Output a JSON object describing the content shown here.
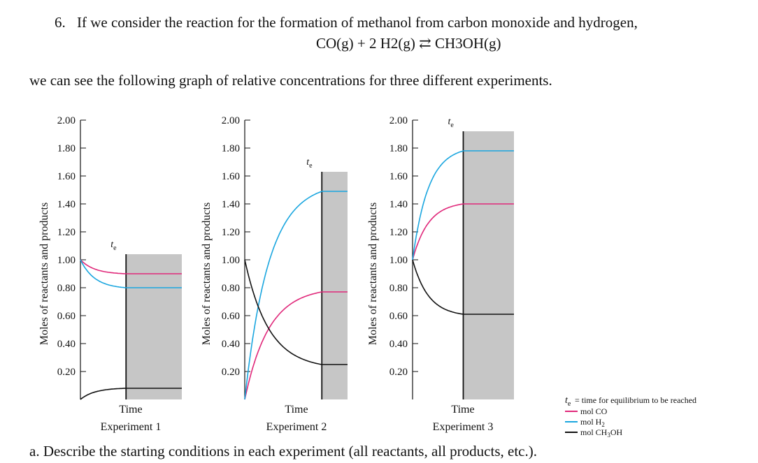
{
  "question": {
    "number": "6.",
    "text": "If we consider the reaction for the formation of methanol from carbon monoxide and hydrogen,",
    "equation": "CO(g) + 2 H2(g) ⇄ CH3OH(g)",
    "intro": "we can see the following graph of relative concentrations for three different experiments.",
    "part_a": "a. Describe the starting conditions in each experiment (all reactants, all products, etc.)."
  },
  "legend": {
    "te_symbol": "t",
    "te_sub": "e",
    "te_text": "= time for equilibrium to be reached",
    "co": "mol CO",
    "h2": "mol H",
    "h2_sub": "2",
    "ch3oh": "mol CH",
    "ch3oh_sub": "3",
    "ch3oh_end": "OH"
  },
  "colors": {
    "co": "#e0287a",
    "h2": "#1aa6df",
    "ch3oh": "#111111",
    "shade": "#c6c6c6"
  },
  "chart_data": [
    {
      "type": "line",
      "title": "Experiment 1",
      "xlabel": "Time",
      "ylabel": "Moles of reactants and products",
      "yticks": [
        "2.00",
        "1.80",
        "1.60",
        "1.40",
        "1.20",
        "1.00",
        "0.80",
        "0.60",
        "0.40",
        "0.20"
      ],
      "ylim": [
        0,
        2.0
      ],
      "te_label": "t",
      "te_fraction": 0.45,
      "series": [
        {
          "name": "mol CO",
          "start": 1.0,
          "equilibrium": 0.9
        },
        {
          "name": "mol H2",
          "start": 1.0,
          "equilibrium": 0.8
        },
        {
          "name": "mol CH3OH",
          "start": 0.0,
          "equilibrium": 0.08
        }
      ]
    },
    {
      "type": "line",
      "title": "Experiment 2",
      "xlabel": "Time",
      "ylabel": "Moles of reactants and products",
      "yticks": [
        "2.00",
        "1.80",
        "1.60",
        "1.40",
        "1.20",
        "1.00",
        "0.80",
        "0.60",
        "0.40",
        "0.20"
      ],
      "ylim": [
        0,
        2.0
      ],
      "te_label": "t",
      "te_fraction": 0.75,
      "series": [
        {
          "name": "mol CO",
          "start": 0.0,
          "equilibrium": 0.77
        },
        {
          "name": "mol H2",
          "start": 0.0,
          "equilibrium": 1.49
        },
        {
          "name": "mol CH3OH",
          "start": 1.0,
          "equilibrium": 0.25
        }
      ]
    },
    {
      "type": "line",
      "title": "Experiment 3",
      "xlabel": "Time",
      "ylabel": "Moles of reactants and products",
      "yticks": [
        "2.00",
        "1.80",
        "1.60",
        "1.40",
        "1.20",
        "1.00",
        "0.80",
        "0.60",
        "0.40",
        "0.20"
      ],
      "ylim": [
        0,
        2.0
      ],
      "te_label": "t",
      "te_fraction": 0.5,
      "series": [
        {
          "name": "mol CO",
          "start": 1.0,
          "equilibrium": 1.4
        },
        {
          "name": "mol H2",
          "start": 1.0,
          "equilibrium": 1.78
        },
        {
          "name": "mol CH3OH",
          "start": 1.0,
          "equilibrium": 0.61
        }
      ]
    }
  ]
}
